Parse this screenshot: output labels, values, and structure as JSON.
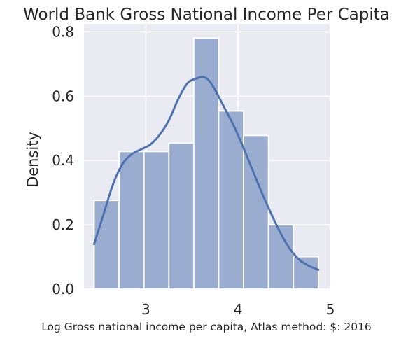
{
  "chart_data": {
    "type": "bar",
    "title": "World Bank Gross National Income Per Capita",
    "xlabel": "Log Gross national income per capita, Atlas method: $: 2016",
    "ylabel": "Density",
    "xlim": [
      2.33,
      5.0
    ],
    "ylim": [
      0.0,
      0.825
    ],
    "xticks": [
      3,
      4,
      5
    ],
    "yticks": [
      0.0,
      0.2,
      0.4,
      0.6,
      0.8
    ],
    "xtick_labels": [
      "3",
      "4",
      "5"
    ],
    "ytick_labels": [
      "0.0",
      "0.2",
      "0.4",
      "0.6",
      "0.8"
    ],
    "grid": true,
    "colors": {
      "background": "#eaeaf2",
      "bar_fill": "#9aadd0",
      "kde_line": "#4c72b0",
      "grid": "#ffffff"
    },
    "bins": [
      {
        "x0": 2.44,
        "x1": 2.71,
        "density": 0.276
      },
      {
        "x0": 2.71,
        "x1": 2.98,
        "density": 0.428
      },
      {
        "x0": 2.98,
        "x1": 3.25,
        "density": 0.428
      },
      {
        "x0": 3.25,
        "x1": 3.52,
        "density": 0.454
      },
      {
        "x0": 3.52,
        "x1": 3.79,
        "density": 0.781
      },
      {
        "x0": 3.79,
        "x1": 4.06,
        "density": 0.554
      },
      {
        "x0": 4.06,
        "x1": 4.33,
        "density": 0.478
      },
      {
        "x0": 4.33,
        "x1": 4.6,
        "density": 0.2
      },
      {
        "x0": 4.6,
        "x1": 4.87,
        "density": 0.101
      }
    ],
    "kde": {
      "x": [
        2.44,
        2.55,
        2.65,
        2.75,
        2.85,
        2.95,
        3.05,
        3.15,
        3.25,
        3.35,
        3.45,
        3.55,
        3.62,
        3.68,
        3.75,
        3.85,
        3.95,
        4.05,
        4.15,
        4.25,
        4.35,
        4.45,
        4.55,
        4.65,
        4.75,
        4.87
      ],
      "y": [
        0.14,
        0.24,
        0.33,
        0.39,
        0.42,
        0.435,
        0.45,
        0.48,
        0.525,
        0.59,
        0.64,
        0.655,
        0.66,
        0.65,
        0.62,
        0.565,
        0.51,
        0.445,
        0.375,
        0.305,
        0.24,
        0.18,
        0.13,
        0.095,
        0.075,
        0.06
      ]
    }
  }
}
